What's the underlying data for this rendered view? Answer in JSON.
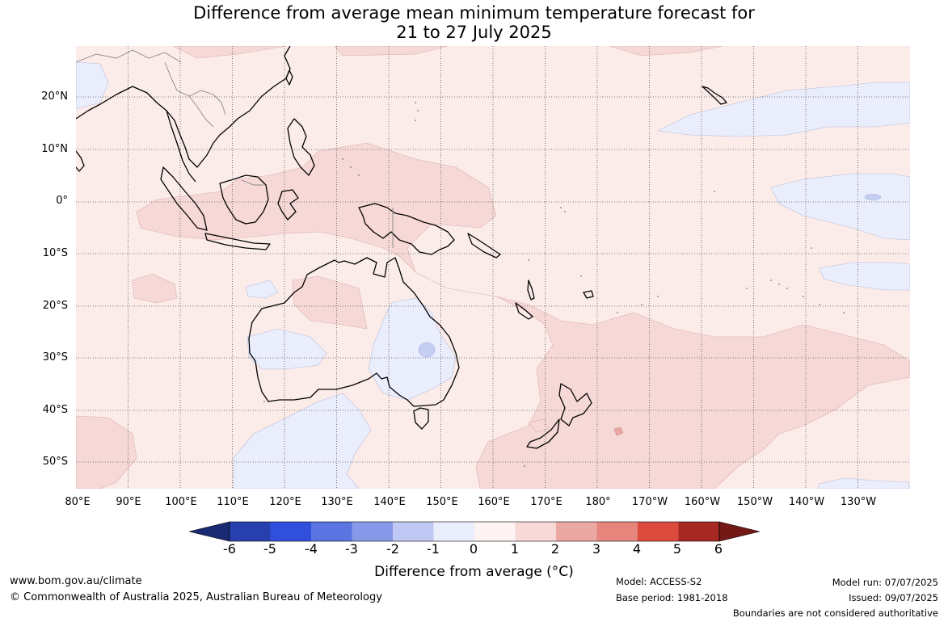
{
  "title_line1": "Difference from average mean minimum temperature forecast for",
  "title_line2": "21 to 27 July 2025",
  "latitude_labels": [
    "20°N",
    "10°N",
    "0°",
    "10°S",
    "20°S",
    "30°S",
    "40°S",
    "50°S"
  ],
  "longitude_labels": [
    "80°E",
    "90°E",
    "100°E",
    "110°E",
    "120°E",
    "130°E",
    "140°E",
    "150°E",
    "160°E",
    "170°E",
    "180°",
    "170°W",
    "160°W",
    "150°W",
    "140°W",
    "130°W"
  ],
  "colorbar": {
    "ticks": [
      "-6",
      "-5",
      "-4",
      "-3",
      "-2",
      "-1",
      "0",
      "1",
      "2",
      "3",
      "4",
      "5",
      "6"
    ],
    "label": "Difference from average (°C)",
    "colors": [
      "#1a2a72",
      "#2840ae",
      "#3050dc",
      "#5a74e2",
      "#8799e8",
      "#c0c9f4",
      "#eaeefc",
      "#fdf3f2",
      "#f7d9d8",
      "#eba7a2",
      "#e6857c",
      "#dc4a3e",
      "#a82824",
      "#741a16"
    ],
    "background": "#fbecea",
    "warm_fill": "#f6d8d6",
    "cool_fill": "#e9edfc",
    "cooler_fill": "#c5cdf2"
  },
  "footer": {
    "website": "www.bom.gov.au/climate",
    "copyright": "© Commonwealth of Australia 2025, Australian Bureau of Meteorology",
    "model": "Model: ACCESS-S2",
    "base_period": "Base period: 1981-2018",
    "model_run": "Model run: 07/07/2025",
    "issued": "Issued: 09/07/2025",
    "boundaries": "Boundaries are not considered authoritative"
  }
}
